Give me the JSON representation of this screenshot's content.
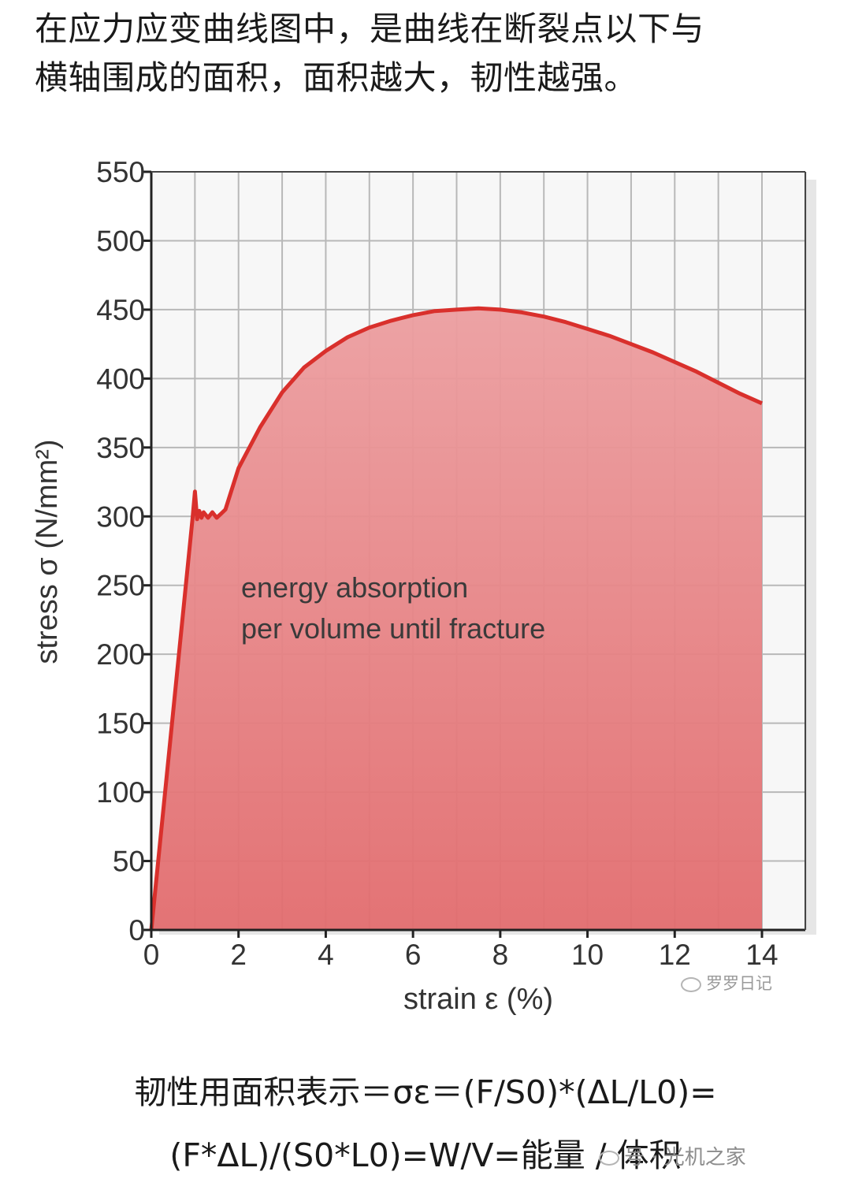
{
  "intro": {
    "line1": "在应力应变曲线图中，是曲线在断裂点以下与",
    "line2": "横轴围成的面积，面积越大，韧性越强。"
  },
  "chart_data": {
    "type": "area",
    "title": "",
    "xlabel": "strain ε (%)",
    "ylabel": "stress σ (N/mm²)",
    "xlim": [
      0,
      14
    ],
    "ylim": [
      0,
      550
    ],
    "x_ticks": [
      "0",
      "2",
      "4",
      "6",
      "8",
      "10",
      "12",
      "14"
    ],
    "y_ticks": [
      "0",
      "50",
      "100",
      "150",
      "200",
      "250",
      "300",
      "350",
      "400",
      "450",
      "500",
      "550"
    ],
    "grid": true,
    "annotation": [
      "energy absorption",
      "per volume until fracture"
    ],
    "series": [
      {
        "x": [
          0,
          0.95,
          1.0,
          1.02,
          1.05,
          1.1,
          1.15,
          1.2,
          1.3,
          1.4,
          1.5,
          1.6,
          1.7,
          2.0,
          2.5,
          3.0,
          3.5,
          4.0,
          4.5,
          5.0,
          5.5,
          6.0,
          6.5,
          7.0,
          7.5,
          8.0,
          8.5,
          9.0,
          9.5,
          10.0,
          10.5,
          11.0,
          11.5,
          12.0,
          12.5,
          13.0,
          13.5,
          14.0
        ],
        "y": [
          0,
          300,
          318,
          310,
          298,
          304,
          299,
          303,
          299,
          303,
          299,
          302,
          305,
          335,
          365,
          390,
          408,
          420,
          430,
          437,
          442,
          446,
          449,
          450,
          451,
          450,
          448,
          445,
          441,
          436,
          431,
          425,
          419,
          412,
          405,
          397,
          389,
          382
        ]
      }
    ],
    "colors": {
      "curve": "#d9302c",
      "fill": "#e87f80",
      "grid": "#b8b8b8"
    }
  },
  "watermark": {
    "chart": "罗罗日记",
    "footer": "号 · 光机之家"
  },
  "formula": {
    "line1": "韧性用面积表示＝σε＝(F/S0)*(ΔL/L0)=",
    "line2": "(F*ΔL)/(S0*L0)=W/V=能量 / 体积"
  }
}
